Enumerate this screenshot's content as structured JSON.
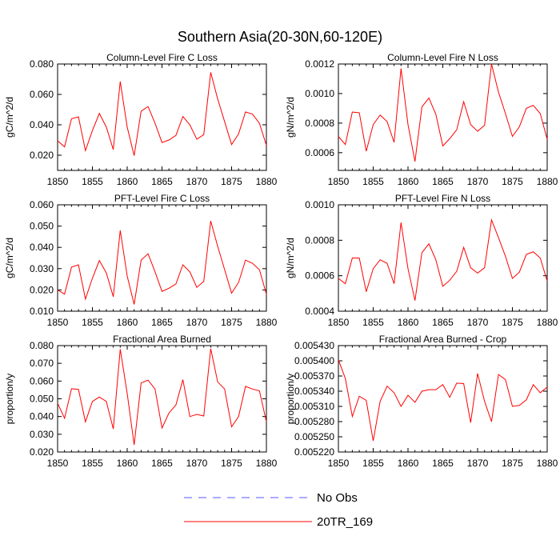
{
  "title": "Southern Asia(20-30N,60-120E)",
  "colors": {
    "model": "#ff0000",
    "obs": "#5555ff",
    "axis": "#000000"
  },
  "legend": {
    "items": [
      {
        "label": "No Obs",
        "style": "dashed",
        "color": "#5555ff"
      },
      {
        "label": "20TR_169",
        "style": "solid",
        "color": "#ff0000"
      }
    ]
  },
  "chart_data": [
    {
      "type": "line",
      "title": "Column-Level Fire C Loss",
      "ylabel": "gC/m^2/d",
      "xlim": [
        1850,
        1880
      ],
      "ylim": [
        0.01,
        0.08
      ],
      "xticks": [
        "1850",
        "1855",
        "1860",
        "1865",
        "1870",
        "1875",
        "1880"
      ],
      "yticks": [
        "0.020",
        "0.040",
        "0.060",
        "0.080"
      ],
      "ytick_values": [
        0.02,
        0.04,
        0.06,
        0.08
      ],
      "x": [
        1850,
        1851,
        1852,
        1853,
        1854,
        1855,
        1856,
        1857,
        1858,
        1859,
        1860,
        1861,
        1862,
        1863,
        1864,
        1865,
        1866,
        1867,
        1868,
        1869,
        1870,
        1871,
        1872,
        1873,
        1874,
        1875,
        1876,
        1877,
        1878,
        1879,
        1880
      ],
      "series": [
        {
          "name": "20TR_169",
          "values": [
            0.0295,
            0.0255,
            0.044,
            0.0452,
            0.023,
            0.0362,
            0.0475,
            0.0385,
            0.0237,
            0.0685,
            0.0385,
            0.0197,
            0.049,
            0.052,
            0.041,
            0.0283,
            0.03,
            0.033,
            0.0455,
            0.04,
            0.0305,
            0.0335,
            0.0745,
            0.057,
            0.042,
            0.027,
            0.034,
            0.0485,
            0.047,
            0.041,
            0.0265
          ]
        }
      ]
    },
    {
      "type": "line",
      "title": "Column-Level Fire N Loss",
      "ylabel": "gN/m^2/d",
      "xlim": [
        1850,
        1880
      ],
      "ylim": [
        0.00048,
        0.0012
      ],
      "xticks": [
        "1850",
        "1855",
        "1860",
        "1865",
        "1870",
        "1875",
        "1880"
      ],
      "yticks": [
        "0.0006",
        "0.0008",
        "0.0010",
        "0.0012"
      ],
      "ytick_values": [
        0.0006,
        0.0008,
        0.001,
        0.0012
      ],
      "x": [
        1850,
        1851,
        1852,
        1853,
        1854,
        1855,
        1856,
        1857,
        1858,
        1859,
        1860,
        1861,
        1862,
        1863,
        1864,
        1865,
        1866,
        1867,
        1868,
        1869,
        1870,
        1871,
        1872,
        1873,
        1874,
        1875,
        1876,
        1877,
        1878,
        1879,
        1880
      ],
      "series": [
        {
          "name": "20TR_169",
          "values": [
            0.00071,
            0.000655,
            0.000875,
            0.00087,
            0.00061,
            0.00079,
            0.000855,
            0.00081,
            0.00067,
            0.00117,
            0.00079,
            0.00054,
            0.00091,
            0.00097,
            0.00086,
            0.000645,
            0.000695,
            0.000755,
            0.000945,
            0.00079,
            0.000745,
            0.000785,
            0.0012,
            0.00101,
            0.000865,
            0.00071,
            0.000775,
            0.0009,
            0.00092,
            0.000865,
            0.00069
          ]
        }
      ]
    },
    {
      "type": "line",
      "title": "PFT-Level Fire C Loss",
      "ylabel": "gC/m^2/d",
      "xlim": [
        1850,
        1880
      ],
      "ylim": [
        0.01,
        0.06
      ],
      "xticks": [
        "1850",
        "1855",
        "1860",
        "1865",
        "1870",
        "1875",
        "1880"
      ],
      "yticks": [
        "0.010",
        "0.020",
        "0.030",
        "0.040",
        "0.050",
        "0.060"
      ],
      "ytick_values": [
        0.01,
        0.02,
        0.03,
        0.04,
        0.05,
        0.06
      ],
      "x": [
        1850,
        1851,
        1852,
        1853,
        1854,
        1855,
        1856,
        1857,
        1858,
        1859,
        1860,
        1861,
        1862,
        1863,
        1864,
        1865,
        1866,
        1867,
        1868,
        1869,
        1870,
        1871,
        1872,
        1873,
        1874,
        1875,
        1876,
        1877,
        1878,
        1879,
        1880
      ],
      "series": [
        {
          "name": "20TR_169",
          "values": [
            0.02,
            0.018,
            0.0307,
            0.0318,
            0.0157,
            0.0255,
            0.0338,
            0.028,
            0.0168,
            0.048,
            0.0265,
            0.0132,
            0.034,
            0.037,
            0.0285,
            0.0193,
            0.0208,
            0.0228,
            0.0318,
            0.0285,
            0.0212,
            0.024,
            0.0524,
            0.0405,
            0.0295,
            0.0185,
            0.0235,
            0.034,
            0.0325,
            0.0295,
            0.018
          ]
        }
      ]
    },
    {
      "type": "line",
      "title": "PFT-Level Fire N Loss",
      "ylabel": "gN/m^2/d",
      "xlim": [
        1850,
        1880
      ],
      "ylim": [
        0.0004,
        0.001
      ],
      "xticks": [
        "1850",
        "1855",
        "1860",
        "1865",
        "1870",
        "1875",
        "1880"
      ],
      "yticks": [
        "0.0004",
        "0.0006",
        "0.0008",
        "0.0010"
      ],
      "ytick_values": [
        0.0004,
        0.0006,
        0.0008,
        0.001
      ],
      "x": [
        1850,
        1851,
        1852,
        1853,
        1854,
        1855,
        1856,
        1857,
        1858,
        1859,
        1860,
        1861,
        1862,
        1863,
        1864,
        1865,
        1866,
        1867,
        1868,
        1869,
        1870,
        1871,
        1872,
        1873,
        1874,
        1875,
        1876,
        1877,
        1878,
        1879,
        1880
      ],
      "series": [
        {
          "name": "20TR_169",
          "values": [
            0.000585,
            0.000555,
            0.0007,
            0.0007,
            0.00051,
            0.00064,
            0.00069,
            0.00067,
            0.000555,
            0.0009,
            0.00064,
            0.00046,
            0.00073,
            0.00078,
            0.00069,
            0.00054,
            0.000575,
            0.000625,
            0.00076,
            0.000645,
            0.000615,
            0.000645,
            0.000915,
            0.000815,
            0.00071,
            0.000585,
            0.00062,
            0.00072,
            0.000735,
            0.0007,
            0.00057
          ]
        }
      ]
    },
    {
      "type": "line",
      "title": "Fractional Area Burned",
      "ylabel": "proportion/y",
      "xlim": [
        1850,
        1880
      ],
      "ylim": [
        0.02,
        0.08
      ],
      "xticks": [
        "1850",
        "1855",
        "1860",
        "1865",
        "1870",
        "1875",
        "1880"
      ],
      "yticks": [
        "0.020",
        "0.030",
        "0.040",
        "0.050",
        "0.060",
        "0.070",
        "0.080"
      ],
      "ytick_values": [
        0.02,
        0.03,
        0.04,
        0.05,
        0.06,
        0.07,
        0.08
      ],
      "x": [
        1850,
        1851,
        1852,
        1853,
        1854,
        1855,
        1856,
        1857,
        1858,
        1859,
        1860,
        1861,
        1862,
        1863,
        1864,
        1865,
        1866,
        1867,
        1868,
        1869,
        1870,
        1871,
        1872,
        1873,
        1874,
        1875,
        1876,
        1877,
        1878,
        1879,
        1880
      ],
      "series": [
        {
          "name": "20TR_169",
          "values": [
            0.0475,
            0.039,
            0.0557,
            0.0553,
            0.037,
            0.0485,
            0.051,
            0.0485,
            0.033,
            0.078,
            0.053,
            0.024,
            0.059,
            0.0605,
            0.0555,
            0.0335,
            0.042,
            0.0465,
            0.0608,
            0.04,
            0.0412,
            0.0403,
            0.0783,
            0.0595,
            0.0555,
            0.0342,
            0.04,
            0.057,
            0.0555,
            0.0545,
            0.037
          ]
        }
      ]
    },
    {
      "type": "line",
      "title": "Fractional Area Burned - Crop",
      "ylabel": "proportion/y",
      "xlim": [
        1850,
        1880
      ],
      "ylim": [
        0.00522,
        0.00543
      ],
      "xticks": [
        "1850",
        "1855",
        "1860",
        "1865",
        "1870",
        "1875",
        "1880"
      ],
      "yticks": [
        "0.005220",
        "0.005250",
        "0.005280",
        "0.005310",
        "0.005340",
        "0.005370",
        "0.005400",
        "0.005430"
      ],
      "ytick_values": [
        0.00522,
        0.00525,
        0.00528,
        0.00531,
        0.00534,
        0.00537,
        0.0054,
        0.00543
      ],
      "x": [
        1850,
        1851,
        1852,
        1853,
        1854,
        1855,
        1856,
        1857,
        1858,
        1859,
        1860,
        1861,
        1862,
        1863,
        1864,
        1865,
        1866,
        1867,
        1868,
        1869,
        1870,
        1871,
        1872,
        1873,
        1874,
        1875,
        1876,
        1877,
        1878,
        1879,
        1880
      ],
      "series": [
        {
          "name": "20TR_169",
          "values": [
            0.005402,
            0.005365,
            0.00529,
            0.00533,
            0.005322,
            0.005242,
            0.00532,
            0.00535,
            0.005337,
            0.00531,
            0.005332,
            0.005318,
            0.00534,
            0.005343,
            0.005343,
            0.005353,
            0.005328,
            0.005356,
            0.005355,
            0.005278,
            0.005375,
            0.00532,
            0.00528,
            0.005373,
            0.005363,
            0.00531,
            0.005312,
            0.005323,
            0.005353,
            0.005337,
            0.005348
          ]
        }
      ]
    }
  ]
}
